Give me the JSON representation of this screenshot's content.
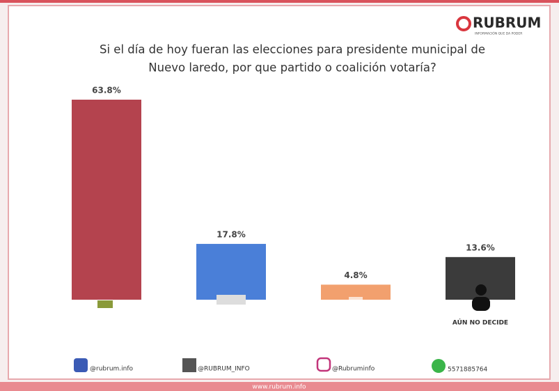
{
  "chart_data": {
    "type": "bar",
    "title": "Si el día de hoy fueran las elecciones para presidente municipal de",
    "subtitle": "Nuevo laredo, por que partido o coalición votaría?",
    "categories": [
      null,
      null,
      null,
      "AÚN NO DECIDE"
    ],
    "values": [
      63.8,
      17.8,
      4.8,
      13.6
    ],
    "value_labels": [
      "63.8%",
      "17.8%",
      "4.8%",
      "13.6%"
    ],
    "colors": [
      "#b4434e",
      "#4a7fd8",
      "#f2a06e",
      "#3b3b3b"
    ]
  },
  "brand": {
    "name": "RUBRUM",
    "tagline": "INFORMACIÓN QUE DA PODER"
  },
  "footer": {
    "facebook": "@rubrum.info",
    "x": "@RUBRUM_INFO",
    "instagram": "@Rubruminfo",
    "whatsapp": "5571885764",
    "website": "www.rubrum.info"
  }
}
